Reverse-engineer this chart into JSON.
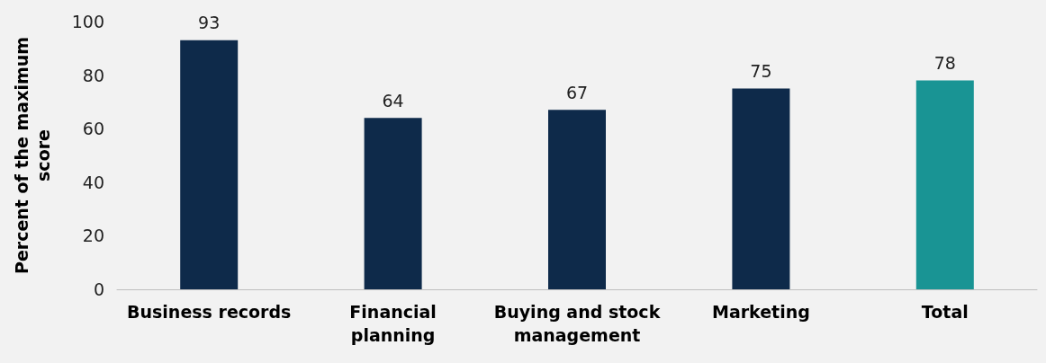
{
  "chart_data": {
    "type": "bar",
    "ylabel": "Percent of the maximum score",
    "categories": [
      "Business records",
      "Financial planning",
      "Buying and stock management",
      "Marketing",
      "Total"
    ],
    "values": [
      93,
      64,
      67,
      75,
      78
    ],
    "colors": [
      "#0e2a4a",
      "#0e2a4a",
      "#0e2a4a",
      "#0e2a4a",
      "#199494"
    ],
    "ylim": [
      0,
      100
    ],
    "yticks": [
      0,
      20,
      40,
      60,
      80,
      100
    ],
    "grid": false,
    "data_labels": true
  }
}
